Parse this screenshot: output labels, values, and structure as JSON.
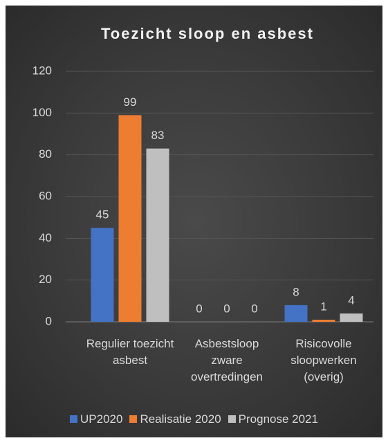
{
  "chart_data": {
    "type": "bar",
    "title": "Toezicht sloop en asbest",
    "categories": [
      "Regulier toezicht asbest",
      "Asbestsloop zware overtredingen",
      "Risicovolle sloopwerken (overig)"
    ],
    "series": [
      {
        "name": "UP2020",
        "color": "#4472c4",
        "values": [
          45,
          0,
          8
        ]
      },
      {
        "name": "Realisatie 2020",
        "color": "#ed7d31",
        "values": [
          99,
          0,
          1
        ]
      },
      {
        "name": "Prognose 2021",
        "color": "#bfbfbf",
        "values": [
          83,
          0,
          4
        ]
      }
    ],
    "ylim": [
      0,
      120
    ],
    "yticks": [
      0,
      20,
      40,
      60,
      80,
      100,
      120
    ],
    "grid": true,
    "legend": "bottom"
  }
}
